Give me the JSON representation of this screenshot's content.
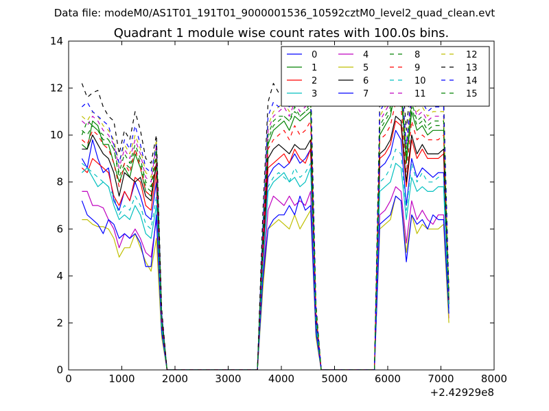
{
  "figure": {
    "suptitle": "Data file: modeM0/AS1T01_191T01_9000001536_10592cztM0_level2_quad_clean.evt"
  },
  "chart_data": {
    "type": "line",
    "title": "Quadrant 1 module wise count rates with 100.0s bins.",
    "xlabel": "",
    "ylabel": "",
    "xlim": [
      0,
      8000
    ],
    "ylim": [
      0,
      14
    ],
    "x_offset_label": "+2.42929e8",
    "xticks": [
      "0",
      "1000",
      "2000",
      "3000",
      "4000",
      "5000",
      "6000",
      "7000",
      "8000"
    ],
    "yticks": [
      "0",
      "2",
      "4",
      "6",
      "8",
      "10",
      "12",
      "14"
    ],
    "grid": false,
    "legend_position": "top-right",
    "legend_ncol": 4,
    "x": [
      250,
      350,
      450,
      550,
      650,
      750,
      850,
      950,
      1050,
      1150,
      1250,
      1350,
      1450,
      1550,
      1650,
      1750,
      1850,
      1950,
      3550,
      3650,
      3750,
      3850,
      3950,
      4050,
      4150,
      4250,
      4350,
      4450,
      4550,
      4650,
      4750,
      4850,
      5750,
      5850,
      5950,
      6050,
      6150,
      6250,
      6350,
      6450,
      6550,
      6650,
      6750,
      6850,
      6950,
      7050,
      7150
    ],
    "series": [
      {
        "name": "0",
        "color": "#0000ff",
        "dash": "solid",
        "values": [
          9.0,
          8.6,
          9.8,
          9.0,
          8.4,
          8.6,
          7.2,
          6.8,
          7.6,
          7.2,
          8.0,
          7.4,
          6.6,
          6.4,
          8.0,
          2.0,
          0,
          0,
          0,
          4.8,
          8.2,
          8.6,
          8.8,
          8.6,
          8.8,
          9.2,
          8.8,
          9.0,
          9.4,
          2.0,
          0,
          0,
          0,
          8.6,
          8.8,
          9.2,
          10.2,
          9.8,
          7.0,
          9.0,
          8.2,
          8.6,
          8.4,
          8.2,
          8.4,
          8.4,
          2.6
        ]
      },
      {
        "name": "1",
        "color": "#008000",
        "dash": "solid",
        "values": [
          9.6,
          9.4,
          10.6,
          10.4,
          9.6,
          9.6,
          8.8,
          8.0,
          8.6,
          8.2,
          9.2,
          8.6,
          7.6,
          7.4,
          8.8,
          2.2,
          0,
          0,
          0,
          5.4,
          9.6,
          10.2,
          10.4,
          10.6,
          10.2,
          10.8,
          10.6,
          10.8,
          11.0,
          2.4,
          0,
          0,
          0,
          10.0,
          10.4,
          10.8,
          12.0,
          11.8,
          8.8,
          11.0,
          10.2,
          10.4,
          10.0,
          10.2,
          10.2,
          10.2,
          3.0
        ]
      },
      {
        "name": "2",
        "color": "#ff0000",
        "dash": "solid",
        "values": [
          8.6,
          8.4,
          9.0,
          8.8,
          8.6,
          8.4,
          7.4,
          7.0,
          7.6,
          7.2,
          8.2,
          8.0,
          7.0,
          6.8,
          8.4,
          2.0,
          0,
          0,
          0,
          4.8,
          8.6,
          8.8,
          9.0,
          9.2,
          8.8,
          9.4,
          9.0,
          8.8,
          9.4,
          2.2,
          0,
          0,
          0,
          9.0,
          9.2,
          9.6,
          10.6,
          10.4,
          7.8,
          9.8,
          9.0,
          9.4,
          9.0,
          9.0,
          9.0,
          9.2,
          2.8
        ]
      },
      {
        "name": "3",
        "color": "#00bfbf",
        "dash": "solid",
        "values": [
          8.4,
          8.6,
          8.2,
          7.8,
          8.0,
          7.8,
          7.0,
          6.4,
          6.6,
          6.4,
          7.0,
          6.6,
          5.8,
          5.6,
          7.0,
          1.8,
          0,
          0,
          0,
          4.2,
          7.6,
          8.0,
          8.2,
          8.4,
          8.0,
          8.2,
          7.8,
          8.0,
          8.6,
          1.8,
          0,
          0,
          0,
          7.6,
          7.8,
          8.0,
          8.8,
          8.6,
          6.4,
          8.2,
          7.6,
          7.8,
          7.6,
          7.6,
          7.8,
          7.8,
          2.4
        ]
      },
      {
        "name": "4",
        "color": "#bf00bf",
        "dash": "solid",
        "values": [
          7.6,
          7.6,
          7.0,
          7.0,
          6.9,
          6.4,
          6.0,
          5.2,
          5.8,
          5.6,
          6.0,
          5.6,
          5.0,
          4.8,
          6.4,
          1.6,
          0,
          0,
          0,
          3.8,
          6.8,
          7.4,
          7.2,
          7.0,
          7.4,
          7.0,
          7.2,
          7.0,
          7.6,
          1.6,
          0,
          0,
          0,
          6.6,
          6.8,
          7.2,
          7.8,
          7.6,
          5.4,
          7.2,
          6.4,
          6.8,
          6.4,
          6.2,
          6.6,
          6.6,
          2.2
        ]
      },
      {
        "name": "5",
        "color": "#bfbf00",
        "dash": "solid",
        "values": [
          6.4,
          6.4,
          6.2,
          6.1,
          6.1,
          6.0,
          5.6,
          4.8,
          5.2,
          5.2,
          5.8,
          5.2,
          4.6,
          4.2,
          5.6,
          1.4,
          0,
          0,
          0,
          3.4,
          6.0,
          6.2,
          6.4,
          6.2,
          6.0,
          6.6,
          6.0,
          6.4,
          6.8,
          1.4,
          0,
          0,
          0,
          6.0,
          6.2,
          6.4,
          7.4,
          7.2,
          5.0,
          6.6,
          5.8,
          6.2,
          6.0,
          6.0,
          6.0,
          6.2,
          2.0
        ]
      },
      {
        "name": "6",
        "color": "#000000",
        "dash": "solid",
        "values": [
          9.4,
          9.4,
          10.0,
          9.6,
          9.2,
          9.0,
          8.4,
          7.4,
          8.4,
          8.2,
          8.0,
          8.2,
          7.4,
          7.2,
          8.8,
          2.0,
          0,
          0,
          0,
          5.0,
          9.0,
          9.4,
          9.6,
          9.4,
          9.2,
          9.6,
          9.4,
          9.4,
          9.8,
          2.2,
          0,
          0,
          0,
          9.2,
          9.4,
          9.8,
          10.8,
          10.6,
          8.0,
          10.0,
          9.2,
          9.6,
          9.2,
          9.2,
          9.2,
          9.4,
          2.8
        ]
      },
      {
        "name": "7",
        "color": "#0000ff",
        "dash": "solid",
        "values": [
          7.2,
          6.6,
          6.4,
          6.2,
          5.8,
          6.4,
          6.2,
          5.6,
          5.8,
          5.6,
          5.8,
          5.4,
          4.4,
          4.4,
          6.6,
          1.6,
          0,
          0,
          0,
          3.8,
          6.0,
          6.4,
          6.6,
          6.6,
          7.0,
          6.6,
          7.4,
          6.8,
          7.0,
          1.6,
          0,
          0,
          0,
          6.2,
          6.4,
          6.6,
          7.4,
          7.2,
          4.6,
          6.6,
          6.2,
          6.4,
          6.0,
          6.6,
          6.4,
          6.4,
          2.4
        ]
      },
      {
        "name": "8",
        "color": "#008000",
        "dash": "dashed",
        "values": [
          10.2,
          10.0,
          10.4,
          10.2,
          9.8,
          9.8,
          9.4,
          8.2,
          8.8,
          8.6,
          9.4,
          8.8,
          7.8,
          7.6,
          9.2,
          2.2,
          0,
          0,
          0,
          5.6,
          9.8,
          10.4,
          10.6,
          10.8,
          10.6,
          11.0,
          10.8,
          11.0,
          11.2,
          2.4,
          0,
          0,
          0,
          10.2,
          10.6,
          11.0,
          12.2,
          12.0,
          9.0,
          11.2,
          10.4,
          10.6,
          10.2,
          10.4,
          10.4,
          10.4,
          3.0
        ]
      },
      {
        "name": "9",
        "color": "#ff0000",
        "dash": "dashed",
        "values": [
          9.8,
          9.6,
          10.2,
          10.0,
          9.6,
          9.4,
          8.8,
          7.8,
          8.8,
          8.4,
          9.4,
          8.6,
          7.6,
          7.4,
          9.0,
          2.2,
          0,
          0,
          0,
          5.2,
          9.4,
          9.8,
          10.0,
          10.2,
          9.8,
          10.4,
          10.0,
          10.2,
          10.6,
          2.4,
          0,
          0,
          0,
          9.8,
          10.0,
          10.4,
          11.4,
          11.2,
          8.4,
          10.6,
          9.8,
          10.0,
          9.8,
          9.8,
          9.8,
          10.0,
          3.0
        ]
      },
      {
        "name": "10",
        "color": "#00bfbf",
        "dash": "dashed",
        "values": [
          8.8,
          8.6,
          8.4,
          8.2,
          8.0,
          7.8,
          7.4,
          6.6,
          7.0,
          6.8,
          7.4,
          7.0,
          6.2,
          6.0,
          7.4,
          1.8,
          0,
          0,
          0,
          4.4,
          7.8,
          8.2,
          8.4,
          8.2,
          8.0,
          8.6,
          8.2,
          8.4,
          8.8,
          2.0,
          0,
          0,
          0,
          8.0,
          8.2,
          8.6,
          9.4,
          9.2,
          6.8,
          8.8,
          8.0,
          8.4,
          8.0,
          8.0,
          8.2,
          8.2,
          2.6
        ]
      },
      {
        "name": "11",
        "color": "#bf00bf",
        "dash": "dashed",
        "values": [
          10.6,
          10.4,
          10.8,
          10.6,
          10.2,
          10.0,
          9.6,
          8.6,
          9.4,
          9.0,
          9.8,
          9.2,
          8.2,
          8.0,
          9.6,
          2.4,
          0,
          0,
          0,
          5.8,
          10.2,
          10.8,
          11.0,
          11.2,
          10.8,
          11.4,
          11.0,
          11.2,
          11.6,
          2.6,
          0,
          0,
          0,
          10.6,
          11.0,
          11.4,
          12.6,
          12.4,
          9.4,
          11.6,
          10.8,
          11.0,
          10.6,
          10.8,
          10.8,
          10.8,
          3.2
        ]
      },
      {
        "name": "12",
        "color": "#bfbf00",
        "dash": "dashed",
        "values": [
          10.8,
          10.6,
          11.0,
          10.8,
          10.4,
          10.2,
          9.8,
          8.8,
          9.6,
          9.2,
          10.0,
          9.4,
          8.4,
          8.2,
          9.8,
          2.4,
          0,
          0,
          0,
          5.8,
          10.4,
          11.0,
          11.2,
          11.4,
          11.0,
          11.6,
          11.2,
          11.4,
          11.8,
          2.6,
          0,
          0,
          0,
          10.8,
          11.2,
          11.6,
          12.8,
          12.6,
          9.6,
          11.8,
          11.0,
          11.2,
          10.8,
          11.0,
          11.0,
          11.0,
          3.2
        ]
      },
      {
        "name": "13",
        "color": "#000000",
        "dash": "dashed",
        "values": [
          12.2,
          11.6,
          11.8,
          11.9,
          11.2,
          10.8,
          10.6,
          9.2,
          10.2,
          9.8,
          11.0,
          10.2,
          9.0,
          8.8,
          10.0,
          2.6,
          0,
          0,
          0,
          6.6,
          11.4,
          12.2,
          11.8,
          12.0,
          11.8,
          12.4,
          12.0,
          12.2,
          12.4,
          2.8,
          0,
          0,
          0,
          11.4,
          12.0,
          12.4,
          13.4,
          13.2,
          10.2,
          12.6,
          11.8,
          12.0,
          11.6,
          11.8,
          11.8,
          11.6,
          3.4
        ]
      },
      {
        "name": "14",
        "color": "#0000ff",
        "dash": "dashed",
        "values": [
          11.2,
          11.4,
          11.0,
          10.8,
          10.6,
          10.4,
          9.6,
          8.8,
          9.8,
          9.4,
          10.4,
          9.6,
          8.6,
          8.4,
          9.6,
          2.4,
          0,
          0,
          0,
          6.0,
          10.8,
          11.4,
          11.2,
          11.4,
          11.2,
          11.8,
          11.4,
          11.6,
          12.0,
          2.6,
          0,
          0,
          0,
          11.0,
          11.4,
          11.8,
          12.8,
          12.4,
          9.6,
          11.8,
          11.2,
          11.4,
          11.0,
          11.2,
          11.2,
          11.2,
          3.2
        ]
      },
      {
        "name": "15",
        "color": "#008000",
        "dash": "dashed",
        "values": [
          10.0,
          10.6,
          10.4,
          10.2,
          10.0,
          9.8,
          9.4,
          8.4,
          9.2,
          8.8,
          9.6,
          9.0,
          8.0,
          7.8,
          9.4,
          2.2,
          0,
          0,
          0,
          5.6,
          10.0,
          10.6,
          10.8,
          10.8,
          10.6,
          11.2,
          10.8,
          11.0,
          11.4,
          2.6,
          0,
          0,
          0,
          10.4,
          10.8,
          11.2,
          12.2,
          12.0,
          9.2,
          11.4,
          10.6,
          10.8,
          10.4,
          10.6,
          10.6,
          10.6,
          3.0
        ]
      }
    ]
  }
}
